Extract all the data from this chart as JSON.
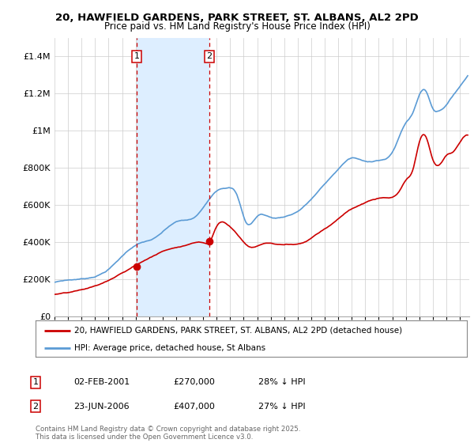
{
  "title": "20, HAWFIELD GARDENS, PARK STREET, ST. ALBANS, AL2 2PD",
  "subtitle": "Price paid vs. HM Land Registry's House Price Index (HPI)",
  "legend_label_red": "20, HAWFIELD GARDENS, PARK STREET, ST. ALBANS, AL2 2PD (detached house)",
  "legend_label_blue": "HPI: Average price, detached house, St Albans",
  "annotation1_label": "1",
  "annotation1_date": "02-FEB-2001",
  "annotation1_price": "£270,000",
  "annotation1_hpi": "28% ↓ HPI",
  "annotation2_label": "2",
  "annotation2_date": "23-JUN-2006",
  "annotation2_price": "£407,000",
  "annotation2_hpi": "27% ↓ HPI",
  "footer": "Contains HM Land Registry data © Crown copyright and database right 2025.\nThis data is licensed under the Open Government Licence v3.0.",
  "red_color": "#cc0000",
  "blue_color": "#5b9bd5",
  "shade_color": "#ddeeff",
  "vline_color": "#cc0000",
  "background_color": "#ffffff",
  "ylim": [
    0,
    1500000
  ],
  "purchase1_year": 2001.08,
  "purchase1_price": 270000,
  "purchase2_year": 2006.47,
  "purchase2_price": 407000,
  "vline1_year": 2001.08,
  "vline2_year": 2006.47
}
